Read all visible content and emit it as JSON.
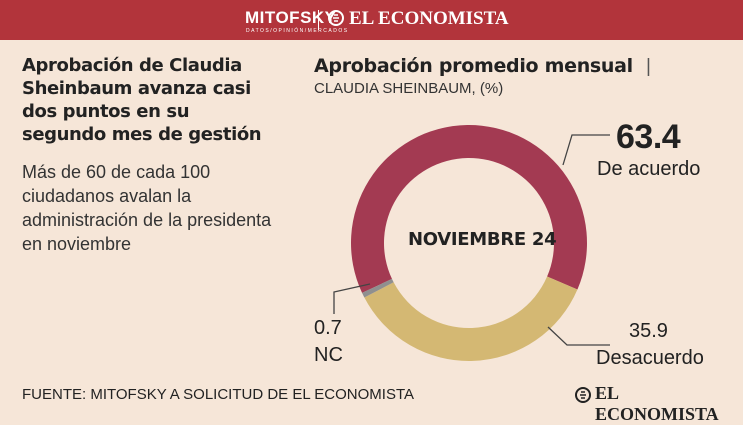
{
  "header": {
    "brand_left": "MITOFSKY",
    "brand_left_sub": "DATOS/OPINIÓN/MERCADOS",
    "brand_right": "EL ECONOMISTA"
  },
  "article": {
    "headline": "Aprobación de Claudia Sheinbaum avanza casi dos puntos en su segundo mes de gestión",
    "subhead": "Más de 60 de cada 100 ciudadanos avalan la administración de la presidenta en noviembre"
  },
  "chart_data": {
    "type": "pie",
    "title": "Aprobación promedio mensual",
    "subtitle": "CLAUDIA SHEINBAUM, (%)",
    "center_label": "NOVIEMBRE 24",
    "slices": [
      {
        "label": "De acuerdo",
        "value": 63.4,
        "value_text": "63.4",
        "color": "#a33a52"
      },
      {
        "label": "Desacuerdo",
        "value": 35.9,
        "value_text": "35.9",
        "color": "#d4b873"
      },
      {
        "label": "NC",
        "value": 0.7,
        "value_text": "0.7",
        "color": "#8f8f8f"
      }
    ]
  },
  "footer": {
    "source": "FUENTE: MITOFSKY A SOLICITUD DE EL ECONOMISTA",
    "logo": "EL ECONOMISTA"
  },
  "colors": {
    "background": "#f6e6d8",
    "header_bar": "#b2343b",
    "leader_line": "#444444"
  }
}
